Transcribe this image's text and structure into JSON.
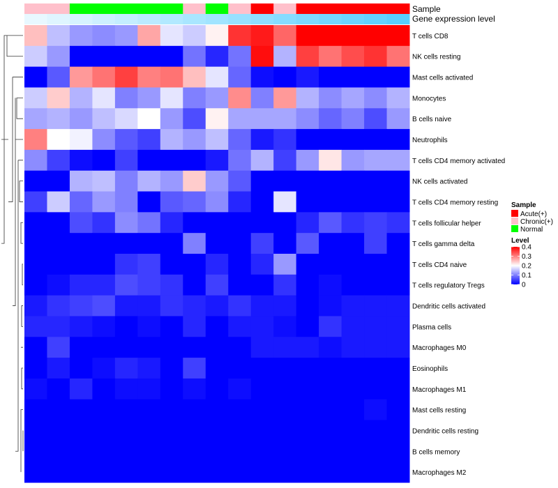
{
  "chart_data": {
    "type": "heatmap",
    "title": "",
    "annotation_tracks": [
      {
        "label": "Sample",
        "values": [
          "Chronic(+)",
          "Chronic(+)",
          "Normal",
          "Normal",
          "Normal",
          "Normal",
          "Normal",
          "Chronic(+)",
          "Normal",
          "Chronic(+)",
          "Acute(+)",
          "Chronic(+)",
          "Acute(+)",
          "Acute(+)",
          "Acute(+)",
          "Acute(+)",
          "Acute(+)"
        ]
      },
      {
        "label": "Gene expression level",
        "values": [
          0.02,
          0.04,
          0.06,
          0.08,
          0.1,
          0.12,
          0.14,
          0.16,
          0.18,
          0.2,
          0.22,
          0.24,
          0.26,
          0.28,
          0.3,
          0.32,
          0.34
        ]
      }
    ],
    "rows": [
      "T cells CD8",
      "NK cells resting",
      "Mast cells activated",
      "Monocytes",
      "B cells naive",
      "Neutrophils",
      "T cells CD4 memory activated",
      "NK cells activated",
      "T cells CD4 memory resting",
      "T cells follicular helper",
      "T cells gamma delta",
      "T cells CD4 naive",
      "T cells regulatory  Tregs",
      "Dendritic cells activated",
      "Plasma cells",
      "Macrophages M0",
      "Eosinophils",
      "Macrophages M1",
      "Mast cells resting",
      "Dendritic cells resting",
      "B cells memory",
      "Macrophages M2"
    ],
    "values": [
      [
        0.25,
        0.15,
        0.12,
        0.11,
        0.12,
        0.27,
        0.18,
        0.16,
        0.21,
        0.36,
        0.38,
        0.32,
        0.4,
        0.42,
        0.42,
        0.42,
        0.42
      ],
      [
        0.16,
        0.12,
        0.0,
        0.0,
        0.0,
        0.0,
        0.0,
        0.09,
        0.03,
        0.09,
        0.39,
        0.14,
        0.35,
        0.31,
        0.34,
        0.36,
        0.31
      ],
      [
        0.0,
        0.07,
        0.28,
        0.31,
        0.35,
        0.3,
        0.31,
        0.25,
        0.18,
        0.08,
        0.01,
        0.0,
        0.02,
        0.0,
        0.0,
        0.0,
        0.0
      ],
      [
        0.16,
        0.24,
        0.14,
        0.18,
        0.1,
        0.12,
        0.18,
        0.1,
        0.12,
        0.29,
        0.1,
        0.28,
        0.14,
        0.11,
        0.13,
        0.11,
        0.14
      ],
      [
        0.13,
        0.14,
        0.12,
        0.15,
        0.17,
        0.2,
        0.12,
        0.06,
        0.21,
        0.13,
        0.13,
        0.13,
        0.11,
        0.08,
        0.1,
        0.06,
        0.12
      ],
      [
        0.3,
        0.2,
        0.19,
        0.11,
        0.07,
        0.05,
        0.14,
        0.12,
        0.15,
        0.08,
        0.02,
        0.04,
        0.0,
        0.0,
        0.0,
        0.0,
        0.0
      ],
      [
        0.11,
        0.05,
        0.01,
        0.0,
        0.05,
        0.0,
        0.0,
        0.0,
        0.02,
        0.09,
        0.14,
        0.05,
        0.12,
        0.22,
        0.12,
        0.13,
        0.13
      ],
      [
        0.0,
        0.0,
        0.14,
        0.15,
        0.1,
        0.14,
        0.12,
        0.24,
        0.12,
        0.07,
        0.0,
        0.0,
        0.0,
        0.0,
        0.0,
        0.0,
        0.0
      ],
      [
        0.05,
        0.16,
        0.08,
        0.12,
        0.1,
        0.0,
        0.07,
        0.08,
        0.11,
        0.03,
        0.0,
        0.18,
        0.0,
        0.0,
        0.0,
        0.0,
        0.0
      ],
      [
        0.0,
        0.0,
        0.06,
        0.04,
        0.11,
        0.09,
        0.03,
        0.0,
        0.0,
        0.0,
        0.0,
        0.0,
        0.03,
        0.07,
        0.04,
        0.05,
        0.04
      ],
      [
        0.0,
        0.0,
        0.0,
        0.0,
        0.0,
        0.0,
        0.0,
        0.1,
        0.0,
        0.0,
        0.05,
        0.0,
        0.07,
        0.0,
        0.0,
        0.05,
        0.0
      ],
      [
        0.0,
        0.0,
        0.0,
        0.0,
        0.04,
        0.05,
        0.0,
        0.0,
        0.03,
        0.0,
        0.03,
        0.12,
        0.0,
        0.0,
        0.0,
        0.0,
        0.0
      ],
      [
        0.0,
        0.01,
        0.03,
        0.03,
        0.06,
        0.05,
        0.04,
        0.0,
        0.05,
        0.0,
        0.0,
        0.04,
        0.0,
        0.01,
        0.0,
        0.0,
        0.0
      ],
      [
        0.02,
        0.04,
        0.05,
        0.06,
        0.02,
        0.02,
        0.04,
        0.03,
        0.02,
        0.04,
        0.02,
        0.02,
        0.0,
        0.01,
        0.02,
        0.02,
        0.02
      ],
      [
        0.03,
        0.03,
        0.02,
        0.01,
        0.0,
        0.01,
        0.0,
        0.03,
        0.0,
        0.02,
        0.02,
        0.01,
        0.0,
        0.04,
        0.02,
        0.02,
        0.02
      ],
      [
        0.0,
        0.05,
        0.0,
        0.0,
        0.0,
        0.0,
        0.0,
        0.0,
        0.0,
        0.0,
        0.02,
        0.02,
        0.02,
        0.01,
        0.02,
        0.02,
        0.02
      ],
      [
        0.0,
        0.02,
        0.0,
        0.01,
        0.03,
        0.02,
        0.0,
        0.05,
        0.0,
        0.0,
        0.0,
        0.0,
        0.0,
        0.0,
        0.0,
        0.0,
        0.0
      ],
      [
        0.01,
        0.0,
        0.03,
        0.0,
        0.01,
        0.01,
        0.0,
        0.01,
        0.0,
        0.01,
        0.0,
        0.0,
        0.0,
        0.0,
        0.0,
        0.0,
        0.0
      ],
      [
        0.0,
        0.0,
        0.0,
        0.0,
        0.0,
        0.0,
        0.0,
        0.0,
        0.0,
        0.0,
        0.0,
        0.0,
        0.0,
        0.0,
        0.0,
        0.01,
        0.0
      ],
      [
        0.0,
        0.0,
        0.0,
        0.0,
        0.0,
        0.0,
        0.0,
        0.0,
        0.0,
        0.0,
        0.0,
        0.0,
        0.0,
        0.0,
        0.0,
        0.0,
        0.0
      ],
      [
        0.0,
        0.0,
        0.0,
        0.0,
        0.0,
        0.0,
        0.0,
        0.0,
        0.0,
        0.0,
        0.0,
        0.0,
        0.0,
        0.0,
        0.0,
        0.0,
        0.0
      ],
      [
        0.0,
        0.0,
        0.0,
        0.0,
        0.0,
        0.0,
        0.0,
        0.0,
        0.0,
        0.0,
        0.0,
        0.0,
        0.0,
        0.0,
        0.0,
        0.0,
        0.0
      ]
    ],
    "color_scale": {
      "min": 0,
      "max": 0.4,
      "low_color": "#0000FF",
      "mid_color": "#FFFFFF",
      "high_color": "#FF0000"
    },
    "legend": {
      "placement": "right",
      "sample_title": "Sample",
      "sample_entries": [
        {
          "name": "Acute(+)",
          "color": "#FF0000"
        },
        {
          "name": "Chronic(+)",
          "color": "#FFC0CB"
        },
        {
          "name": "Normal",
          "color": "#00FF00"
        }
      ],
      "level_title": "Level",
      "level_ticks": [
        0.4,
        0.3,
        0.2,
        0.1,
        0
      ],
      "level_tick_labels": [
        "0.4",
        "0.3",
        "0.2",
        "0.1",
        "0"
      ]
    },
    "expr_track_colors": [
      "#E8F8FF",
      "#59CFFF"
    ],
    "dendrogram": "row"
  }
}
